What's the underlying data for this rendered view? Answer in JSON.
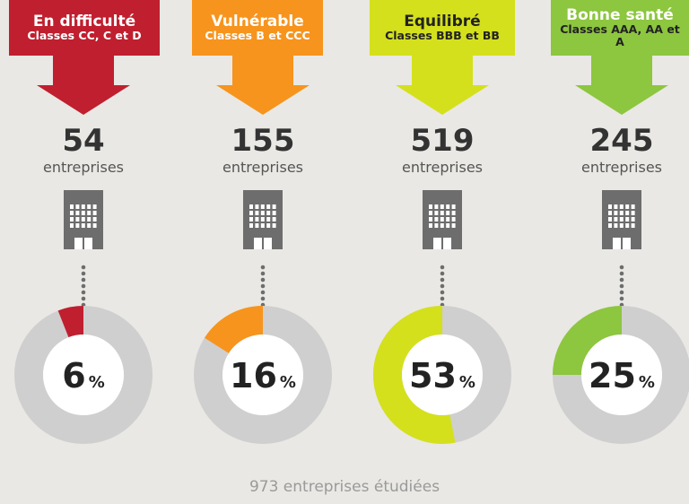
{
  "chart_data": [
    {
      "type": "donut",
      "title": "En difficulté",
      "subtitle": "Classes CC, C et D",
      "count": 54,
      "count_label": "entreprises",
      "value": 6,
      "unit": "%",
      "color": "#c01f2f"
    },
    {
      "type": "donut",
      "title": "Vulnérable",
      "subtitle": "Classes B et CCC",
      "count": 155,
      "count_label": "entreprises",
      "value": 16,
      "unit": "%",
      "color": "#f7941d"
    },
    {
      "type": "donut",
      "title": "Equilibré",
      "subtitle": "Classes BBB et BB",
      "count": 519,
      "count_label": "entreprises",
      "value": 53,
      "unit": "%",
      "color": "#d4e01c"
    },
    {
      "type": "donut",
      "title": "Bonne santé",
      "subtitle": "Classes AAA, AA et A",
      "count": 245,
      "count_label": "entreprises",
      "value": 25,
      "unit": "%",
      "color": "#8dc63f"
    }
  ],
  "footer": "973 entreprises étudiées"
}
